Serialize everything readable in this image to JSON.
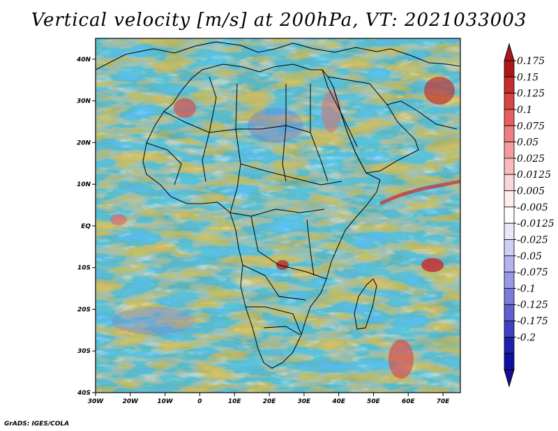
{
  "title": "Vertical velocity [m/s] at 200hPa, VT: 2021033003",
  "footer": "GrADS: IGES/COLA",
  "map": {
    "lon_range": [
      -30,
      75
    ],
    "lat_range": [
      -40,
      45
    ],
    "x_ticks": [
      {
        "lon": -30,
        "label": "30W"
      },
      {
        "lon": -20,
        "label": "20W"
      },
      {
        "lon": -10,
        "label": "10W"
      },
      {
        "lon": 0,
        "label": "0"
      },
      {
        "lon": 10,
        "label": "10E"
      },
      {
        "lon": 20,
        "label": "20E"
      },
      {
        "lon": 30,
        "label": "30E"
      },
      {
        "lon": 40,
        "label": "40E"
      },
      {
        "lon": 50,
        "label": "50E"
      },
      {
        "lon": 60,
        "label": "60E"
      },
      {
        "lon": 70,
        "label": "70E"
      }
    ],
    "y_ticks": [
      {
        "lat": 40,
        "label": "40N"
      },
      {
        "lat": 30,
        "label": "30N"
      },
      {
        "lat": 20,
        "label": "20N"
      },
      {
        "lat": 10,
        "label": "10N"
      },
      {
        "lat": 0,
        "label": "EQ"
      },
      {
        "lat": -10,
        "label": "10S"
      },
      {
        "lat": -20,
        "label": "20S"
      },
      {
        "lat": -30,
        "label": "30S"
      },
      {
        "lat": -40,
        "label": "40S"
      }
    ]
  },
  "colorbar": {
    "labels": [
      "0.175",
      "0.15",
      "0.125",
      "0.1",
      "0.075",
      "0.05",
      "0.025",
      "0.0125",
      "0.005",
      "-0.005",
      "-0.0125",
      "-0.025",
      "-0.05",
      "-0.075",
      "-0.1",
      "-0.125",
      "-0.175",
      "-0.2"
    ],
    "colors": [
      "#b01515",
      "#c62d2d",
      "#d84545",
      "#e66060",
      "#ef7e7e",
      "#f49c9c",
      "#f8baba",
      "#fbd6d6",
      "#fdeeee",
      "#ffffff",
      "#e8e8fb",
      "#cfcff6",
      "#b4b4ef",
      "#9898e6",
      "#7c7cdc",
      "#5f5fd0",
      "#4040c2",
      "#2020aa",
      "#1010a0"
    ],
    "top_color": "#a81a1a",
    "bottom_color": "#1a0a9a"
  },
  "colors": {
    "background": "#ffffff",
    "neutral": "#ececf8",
    "updraft": "#e77b7b",
    "downdraft": "#8c8ce0",
    "coastline": "#000000"
  }
}
